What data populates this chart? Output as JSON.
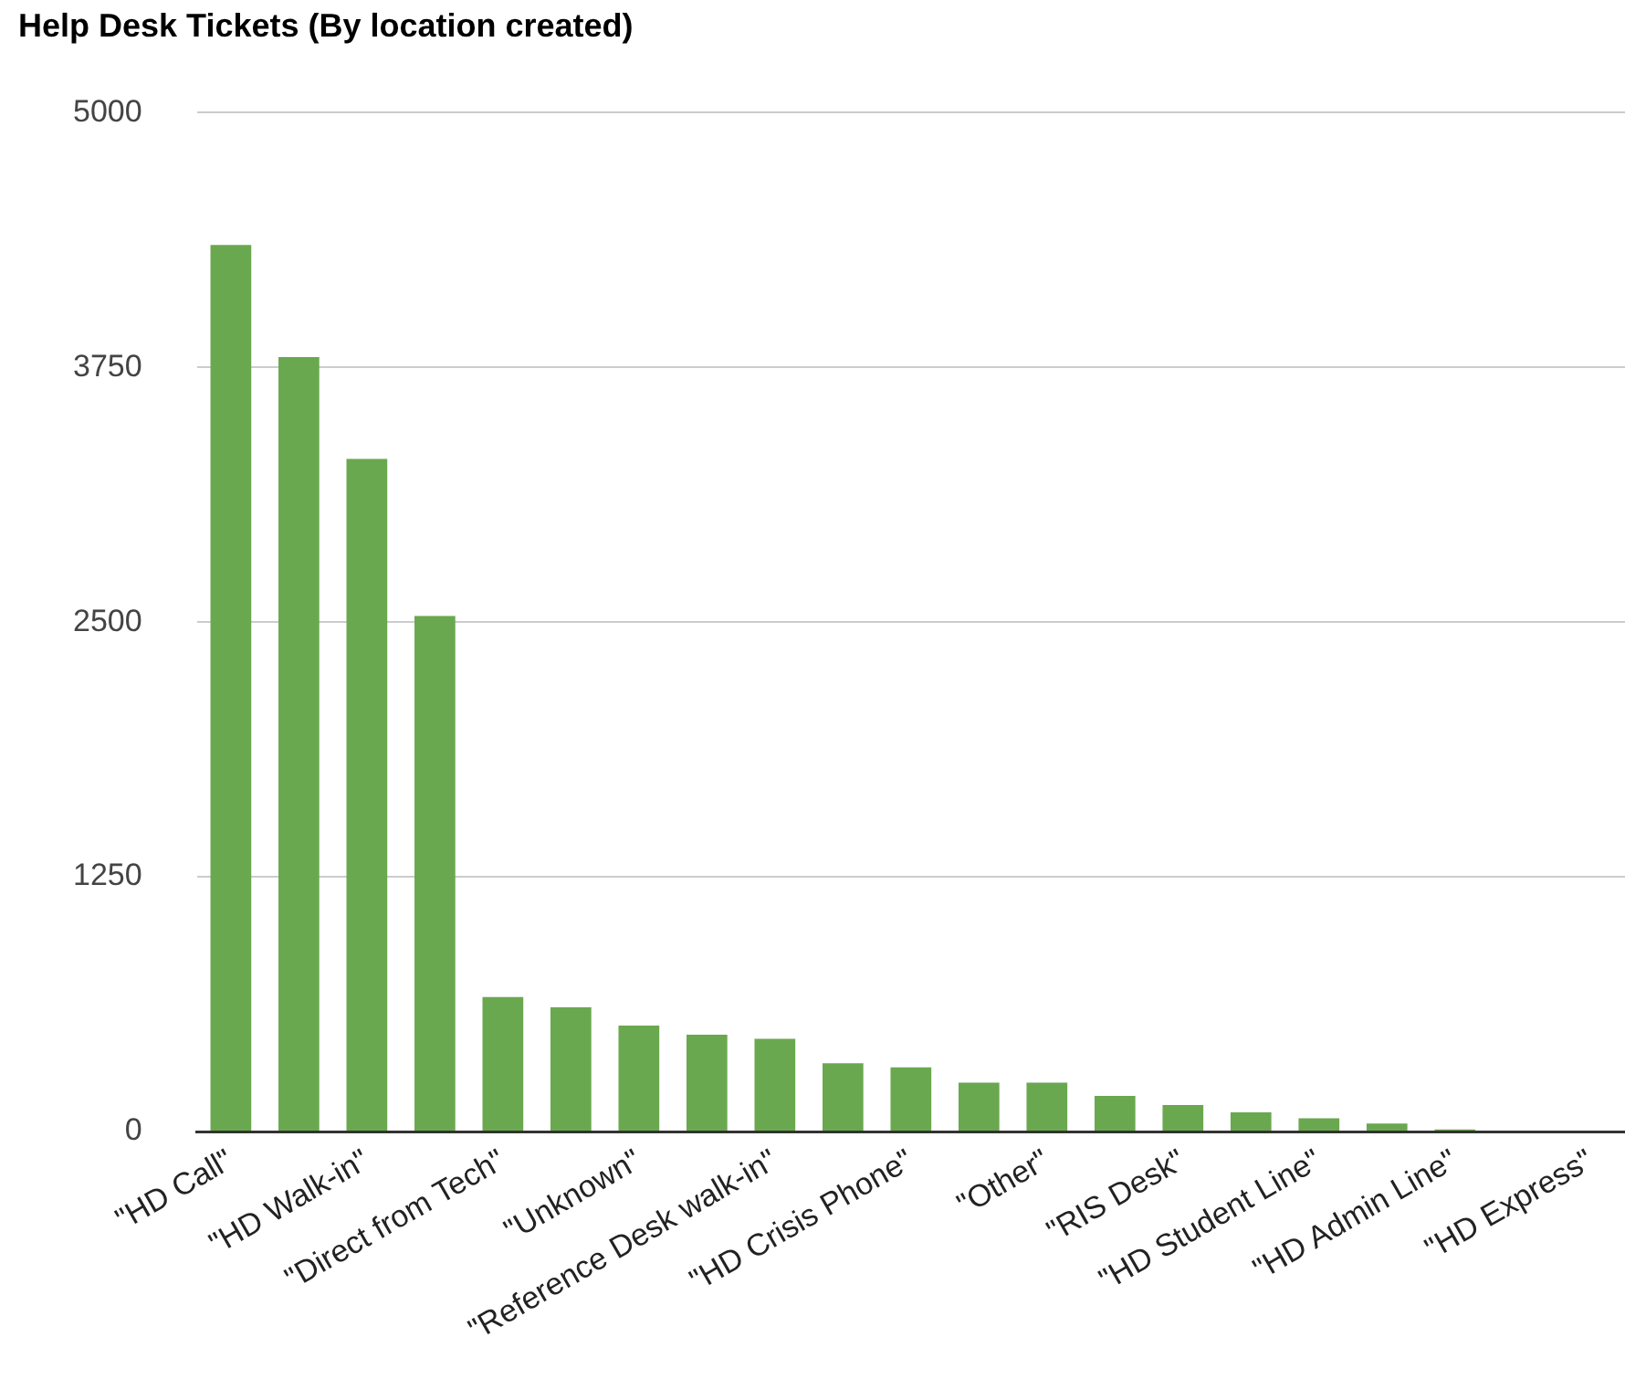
{
  "chart_data": {
    "type": "bar",
    "title": "Help Desk Tickets (By location created)",
    "categories": [
      "\"HD Call\"",
      null,
      "\"HD Walk-in\"",
      null,
      "\"Direct from Tech\"",
      null,
      "\"Unknown\"",
      null,
      "\"Reference Desk walk-in\"",
      null,
      "\"HD Crisis Phone\"",
      null,
      "\"Other\"",
      null,
      "\"RIS Desk\"",
      null,
      "\"HD Student Line\"",
      null,
      "\"HD Admin Line\"",
      null,
      "\"HD Express\""
    ],
    "values": [
      4350,
      3800,
      3300,
      2530,
      660,
      610,
      520,
      475,
      455,
      335,
      315,
      240,
      240,
      175,
      130,
      95,
      65,
      40,
      10,
      0,
      0
    ],
    "color": "#6aa84f",
    "ylim": [
      0,
      5000
    ],
    "yticks": [
      0,
      1250,
      2500,
      3750,
      5000
    ],
    "grid": "y",
    "legend": false
  }
}
